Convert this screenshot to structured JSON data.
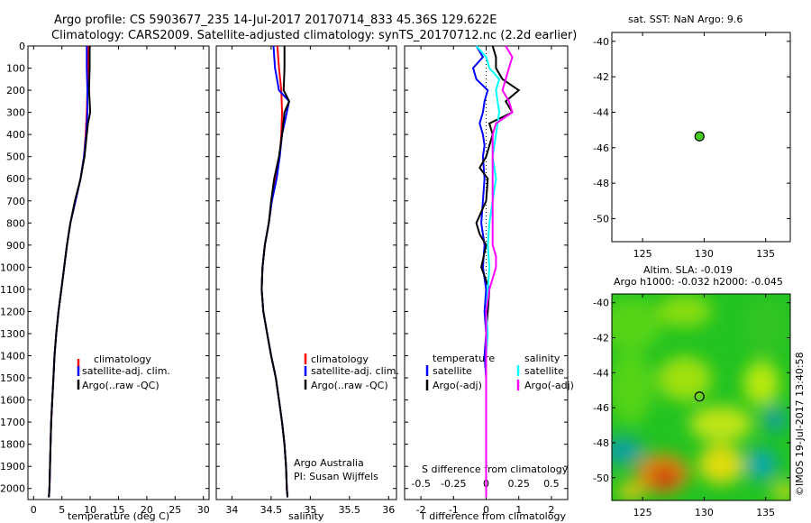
{
  "header": {
    "line1": "Argo profile: CS 5903677_235 14-Jul-2017 20170714_833 45.36S 129.622E",
    "line2": "Climatology: CARS2009. Satellite-adjusted climatology: synTS_20170712.nc (2.2d earlier)"
  },
  "side_label": "©IMOS 19-Jul-2017 13:40:58",
  "colors": {
    "climatology": "#ff0000",
    "satellite": "#0000ff",
    "argo": "#000000",
    "sal_sat": "#00ffff",
    "sal_argo": "#ff00ff",
    "dot": "#44cc22"
  },
  "chart_data": [
    {
      "type": "line",
      "xlabel": "temperature (deg C)",
      "xlim": [
        -1,
        31
      ],
      "ylim": [
        0,
        2050
      ],
      "xticks": [
        0,
        5,
        10,
        15,
        20,
        25,
        30
      ],
      "yticks": [
        0,
        100,
        200,
        300,
        400,
        500,
        600,
        700,
        800,
        900,
        1000,
        1100,
        1200,
        1300,
        1400,
        1500,
        1600,
        1700,
        1800,
        1900,
        2000
      ],
      "legend": [
        "climatology",
        "satellite-adj. clim.",
        "Argo(..raw -QC)"
      ],
      "series": [
        {
          "name": "climatology",
          "color": "#ff0000",
          "depth": [
            0,
            100,
            200,
            300,
            400,
            500,
            600,
            700,
            800,
            900,
            1000,
            1100,
            1200,
            1300,
            1400,
            1500,
            1600,
            1700,
            1800,
            1900,
            2000,
            2040
          ],
          "values": [
            9.7,
            9.6,
            9.5,
            9.4,
            9.2,
            8.9,
            8.3,
            7.4,
            6.5,
            5.9,
            5.4,
            4.9,
            4.4,
            4.0,
            3.7,
            3.5,
            3.3,
            3.1,
            3.0,
            2.9,
            2.8,
            2.7
          ]
        },
        {
          "name": "satellite-adj. clim.",
          "color": "#0000ff",
          "depth": [
            0,
            100,
            200,
            300,
            400,
            500,
            600,
            700,
            800,
            900,
            1000,
            1100,
            1200,
            1300,
            1400,
            1500,
            1600,
            1700,
            1800,
            1900,
            2000,
            2040
          ],
          "values": [
            9.4,
            9.4,
            9.5,
            9.5,
            9.3,
            8.9,
            8.3,
            7.4,
            6.5,
            5.9,
            5.4,
            4.9,
            4.4,
            4.0,
            3.7,
            3.5,
            3.3,
            3.1,
            3.0,
            2.9,
            2.8,
            2.7
          ]
        },
        {
          "name": "Argo(..raw -QC)",
          "color": "#000000",
          "depth": [
            0,
            100,
            200,
            250,
            300,
            350,
            400,
            500,
            600,
            700,
            800,
            900,
            1000,
            1100,
            1200,
            1300,
            1400,
            1500,
            1600,
            1700,
            1800,
            1900,
            2000,
            2040
          ],
          "values": [
            9.9,
            9.9,
            9.8,
            9.9,
            10.0,
            9.6,
            9.4,
            9.0,
            8.3,
            7.3,
            6.5,
            5.9,
            5.4,
            4.9,
            4.4,
            4.0,
            3.7,
            3.5,
            3.3,
            3.1,
            3.0,
            2.9,
            2.8,
            2.7
          ]
        }
      ]
    },
    {
      "type": "line",
      "xlabel": "salinity",
      "xlim": [
        33.8,
        36.1
      ],
      "xticks": [
        34,
        34.5,
        35,
        35.5,
        36
      ],
      "legend": [
        "climatology",
        "satellite-adj. clim.",
        "Argo(..raw -QC)"
      ],
      "annotation": [
        "Argo Australia",
        "PI: Susan Wijffels"
      ],
      "series": [
        {
          "name": "climatology",
          "color": "#ff0000",
          "depth": [
            0,
            100,
            200,
            300,
            400,
            500,
            600,
            700,
            800,
            900,
            1000,
            1100,
            1200,
            1300,
            1400,
            1500,
            1600,
            1700,
            1800,
            1900,
            2000,
            2040
          ],
          "values": [
            34.58,
            34.6,
            34.63,
            34.64,
            34.63,
            34.61,
            34.56,
            34.51,
            34.47,
            34.42,
            34.39,
            34.38,
            34.4,
            34.45,
            34.5,
            34.56,
            34.6,
            34.64,
            34.67,
            34.69,
            34.7,
            34.71
          ]
        },
        {
          "name": "satellite-adj. clim.",
          "color": "#0000ff",
          "depth": [
            0,
            100,
            200,
            250,
            300,
            400,
            500,
            600,
            700,
            800,
            900,
            1000,
            1100,
            1200,
            1300,
            1400,
            1500,
            1600,
            1700,
            1800,
            1900,
            2000,
            2040
          ],
          "values": [
            34.53,
            34.55,
            34.6,
            34.73,
            34.7,
            34.64,
            34.61,
            34.57,
            34.51,
            34.47,
            34.42,
            34.39,
            34.38,
            34.4,
            34.45,
            34.5,
            34.56,
            34.6,
            34.64,
            34.67,
            34.69,
            34.7,
            34.71
          ]
        },
        {
          "name": "Argo(..raw -QC)",
          "color": "#000000",
          "depth": [
            0,
            100,
            200,
            250,
            300,
            400,
            500,
            600,
            700,
            800,
            900,
            1000,
            1100,
            1200,
            1300,
            1400,
            1500,
            1600,
            1700,
            1800,
            1900,
            2000,
            2040
          ],
          "values": [
            34.67,
            34.67,
            34.66,
            34.73,
            34.67,
            34.64,
            34.6,
            34.54,
            34.5,
            34.47,
            34.42,
            34.39,
            34.38,
            34.4,
            34.45,
            34.5,
            34.56,
            34.6,
            34.64,
            34.67,
            34.69,
            34.7,
            34.71
          ]
        }
      ]
    },
    {
      "type": "line",
      "xlabel": "T difference from climatology",
      "x2label": "S difference from climatology",
      "xlim": [
        -2.5,
        2.5
      ],
      "xticks": [
        -2,
        -1,
        0,
        1,
        2
      ],
      "x2ticks": [
        "-0.5",
        "-0.25",
        "0",
        "0.25",
        "0.5"
      ],
      "legend_temperature": [
        "temperature",
        "satellite",
        "Argo(-adj)"
      ],
      "legend_salinity": [
        "salinity",
        "satellite",
        "Argo(-adj)"
      ],
      "series": [
        {
          "name": "temperature satellite",
          "color": "#0000ff",
          "depth": [
            0,
            50,
            100,
            150,
            200,
            250,
            300,
            350,
            400,
            450,
            500,
            600,
            700,
            800,
            900,
            1000,
            1100,
            1200,
            1300,
            1400,
            1500,
            1600,
            1700,
            1800,
            1900,
            2040
          ],
          "values": [
            -0.3,
            -0.1,
            -0.4,
            -0.3,
            0.05,
            -0.05,
            -0.1,
            -0.2,
            -0.1,
            -0.05,
            -0.1,
            -0.05,
            -0.1,
            -0.15,
            -0.05,
            -0.1,
            0,
            -0.05,
            0,
            -0.05,
            0,
            0,
            0,
            0,
            0,
            0
          ]
        },
        {
          "name": "temperature Argo(-adj)",
          "color": "#000000",
          "depth": [
            0,
            50,
            100,
            150,
            200,
            250,
            300,
            350,
            400,
            500,
            550,
            600,
            700,
            800,
            850,
            900,
            1000,
            1100,
            1200,
            1300,
            1400,
            1500,
            1600,
            1700,
            1800,
            2040
          ],
          "values": [
            0.2,
            0.3,
            0.3,
            0.5,
            1.0,
            0.6,
            0.8,
            0.1,
            0.2,
            0,
            -0.2,
            0.05,
            0,
            -0.3,
            -0.2,
            0,
            -0.15,
            0.1,
            0.05,
            0,
            0,
            0,
            0,
            0,
            0,
            0
          ]
        },
        {
          "name": "salinity satellite",
          "color": "#00ffff",
          "depth": [
            0,
            50,
            100,
            150,
            200,
            300,
            400,
            500,
            600,
            700,
            800,
            900,
            1000,
            1100,
            1200,
            1300,
            1400,
            1500,
            1600,
            1700,
            1800,
            2040
          ],
          "values": [
            -0.3,
            0.0,
            0.1,
            0.4,
            0.3,
            0.4,
            0.3,
            0.2,
            0.3,
            0.2,
            0.1,
            0.05,
            0.1,
            0.05,
            0,
            0.05,
            0,
            0,
            0,
            0,
            0,
            0
          ]
        },
        {
          "name": "salinity Argo(-adj)",
          "color": "#ff00ff",
          "depth": [
            0,
            50,
            100,
            150,
            200,
            250,
            300,
            350,
            400,
            600,
            900,
            950,
            1000,
            1100,
            1200,
            1400,
            1600,
            1800,
            2040
          ],
          "values": [
            0.6,
            0.8,
            0.7,
            0.6,
            0.5,
            0.7,
            0.8,
            0.3,
            0.2,
            0.2,
            0.2,
            0.3,
            0.3,
            0.1,
            0,
            0,
            0,
            0,
            0
          ]
        }
      ]
    },
    {
      "type": "scatter",
      "title": "sat. SST: NaN Argo: 9.6",
      "xlim": [
        122.5,
        137
      ],
      "ylim": [
        -51.3,
        -39.5
      ],
      "xticks": [
        125,
        130,
        135
      ],
      "yticks": [
        -40,
        -42,
        -44,
        -46,
        -48,
        -50
      ],
      "points": [
        {
          "lon": 129.622,
          "lat": -45.36
        }
      ]
    },
    {
      "type": "heatmap",
      "title1": "Altim. SLA: -0.019",
      "title2": "Argo h1000: -0.032 h2000: -0.045",
      "xlim": [
        122.5,
        137
      ],
      "ylim": [
        -51.3,
        -39.5
      ],
      "xticks": [
        125,
        130,
        135
      ],
      "yticks": [
        -40,
        -42,
        -44,
        -46,
        -48,
        -50
      ],
      "points": [
        {
          "lon": 129.622,
          "lat": -45.36
        }
      ]
    }
  ]
}
